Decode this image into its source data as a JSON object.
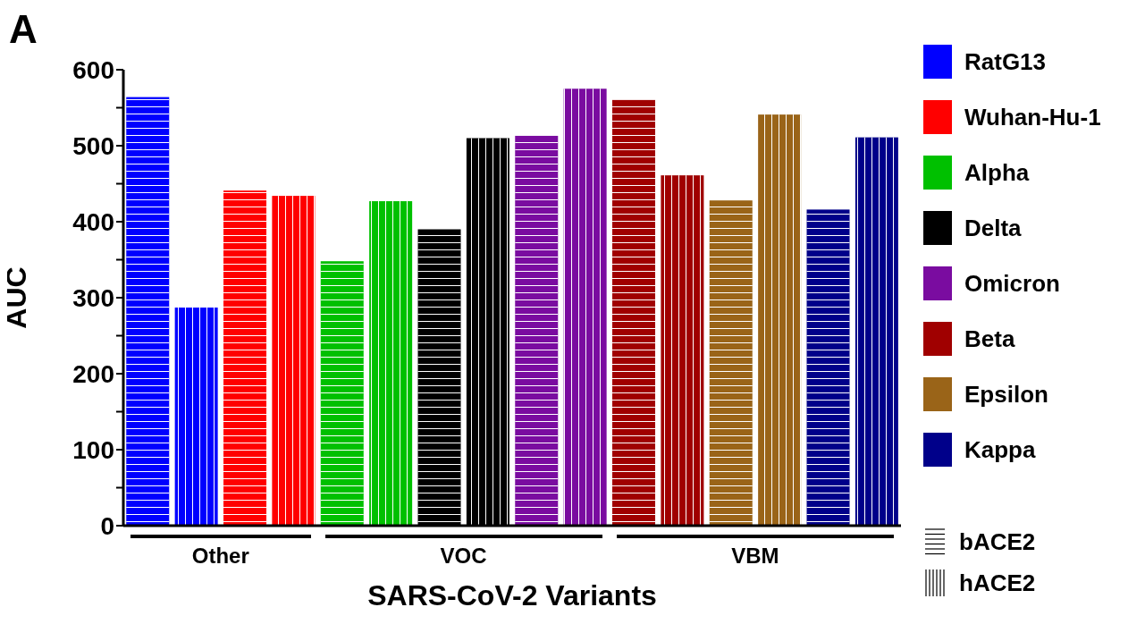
{
  "chart_data": {
    "type": "bar",
    "title": "A",
    "xlabel": "SARS-CoV-2 Variants",
    "ylabel": "AUC",
    "categories": [
      null,
      null,
      null,
      null,
      null,
      null,
      null,
      null,
      null,
      null,
      null,
      null,
      null,
      null,
      null,
      null
    ],
    "series": [
      {
        "name": "RatG13",
        "color": "#0000ff",
        "values": [
          564,
          287,
          null,
          null,
          null,
          null,
          null,
          null,
          null,
          null,
          null,
          null,
          null,
          null,
          null,
          null
        ]
      },
      {
        "name": "Wuhan-Hu-1",
        "color": "#ff0000",
        "values": [
          null,
          null,
          441,
          434,
          null,
          null,
          null,
          null,
          null,
          null,
          null,
          null,
          null,
          null,
          null,
          null
        ]
      },
      {
        "name": "Alpha",
        "color": "#00c000",
        "values": [
          null,
          null,
          null,
          null,
          348,
          427,
          null,
          null,
          null,
          null,
          null,
          null,
          null,
          null,
          null,
          null
        ]
      },
      {
        "name": "Delta",
        "color": "#000000",
        "values": [
          null,
          null,
          null,
          null,
          null,
          null,
          390,
          510,
          null,
          null,
          null,
          null,
          null,
          null,
          null,
          null
        ]
      },
      {
        "name": "Omicron",
        "color": "#7a0ca0",
        "values": [
          null,
          null,
          null,
          null,
          null,
          null,
          null,
          null,
          513,
          575,
          null,
          null,
          null,
          null,
          null,
          null
        ]
      },
      {
        "name": "Beta",
        "color": "#a00000",
        "values": [
          null,
          null,
          null,
          null,
          null,
          null,
          null,
          null,
          null,
          null,
          561,
          461,
          null,
          null,
          null,
          null
        ]
      },
      {
        "name": "Epsilon",
        "color": "#9a6418",
        "values": [
          null,
          null,
          null,
          null,
          null,
          null,
          null,
          null,
          null,
          null,
          null,
          null,
          428,
          541,
          null,
          null
        ]
      },
      {
        "name": "Kappa",
        "color": "#00008a",
        "values": [
          null,
          null,
          null,
          null,
          null,
          null,
          null,
          null,
          null,
          null,
          null,
          null,
          null,
          null,
          416,
          511
        ]
      }
    ],
    "stacked": true,
    "annotations": [
      "Other",
      "VOC",
      "VBM",
      "bACE2",
      "hACE2"
    ],
    "ylim": [
      0,
      600
    ],
    "yticks": [
      0,
      {
        "value": 50,
        "label": null
      },
      100,
      {
        "value": 150,
        "label": null
      },
      200,
      {
        "value": 250,
        "label": null
      },
      300,
      {
        "value": 350,
        "label": null
      },
      400,
      {
        "value": 450,
        "label": null
      },
      500,
      {
        "value": 550,
        "label": null
      },
      600
    ],
    "tick_labels": "y",
    "legend": "right"
  }
}
